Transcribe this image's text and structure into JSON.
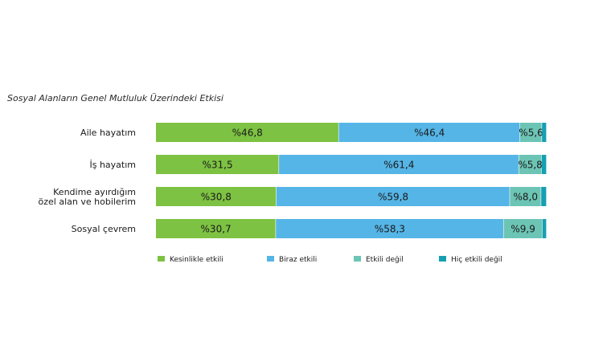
{
  "chart_data": {
    "type": "bar",
    "orientation": "horizontal",
    "stacked": true,
    "title": "Sosyal Alanların Genel Mutluluk Üzerindeki Etkisi",
    "categories": [
      [
        "Aile hayatım"
      ],
      [
        "İş hayatım"
      ],
      [
        "Kendime ayırdığım",
        "özel alan ve hobilerim"
      ],
      [
        "Sosyal çevrem"
      ]
    ],
    "series": [
      {
        "name": "Kesinlikle etkili",
        "color": "#7dc242",
        "values": [
          46.8,
          31.5,
          30.8,
          30.7
        ],
        "labels": [
          "%46,8",
          "%31,5",
          "%30,8",
          "%30,7"
        ]
      },
      {
        "name": "Biraz etkili",
        "color": "#55b5e6",
        "values": [
          46.4,
          61.4,
          59.8,
          58.3
        ],
        "labels": [
          "%46,4",
          "%61,4",
          "%59,8",
          "%58,3"
        ]
      },
      {
        "name": "Etkili değil",
        "color": "#6cc4b4",
        "values": [
          5.6,
          5.8,
          8.0,
          9.9
        ],
        "labels": [
          "%5,6",
          "%5,8",
          "%8,0",
          "%9,9"
        ]
      },
      {
        "name": "Hiç etkili değil",
        "color": "#15a0b2",
        "values": [
          1.2,
          1.3,
          1.4,
          1.1
        ],
        "labels": [
          "",
          "",
          "",
          ""
        ]
      }
    ],
    "xlim": [
      0,
      100
    ],
    "grid": false,
    "legend_position": "bottom"
  }
}
